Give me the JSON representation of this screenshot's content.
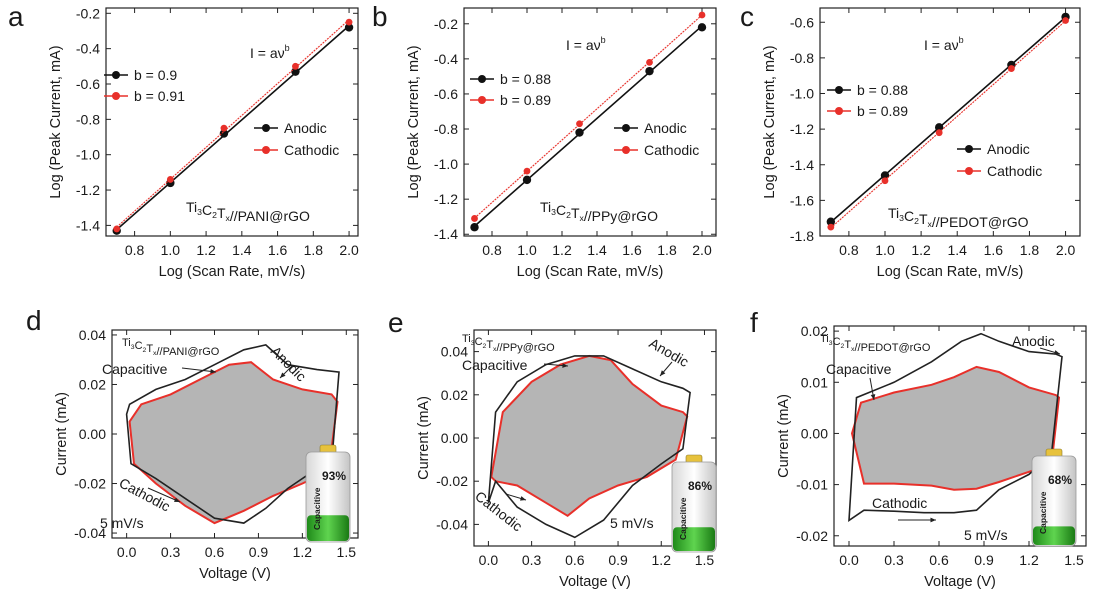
{
  "chart_data": [
    {
      "panel": "a",
      "type": "scatter",
      "equation": "I = aν",
      "equation_exp": "b",
      "label_main": "Ti",
      "label_sub": [
        "3",
        "2",
        "x"
      ],
      "label_parts": [
        "C",
        "T",
        "//PANI@rGO"
      ],
      "xlabel": "Log (Scan Rate, mV/s)",
      "ylabel": "Log (Peak Current, mA)",
      "xlim": [
        0.64,
        2.05
      ],
      "ylim": [
        -1.46,
        -0.17
      ],
      "xticks": [
        "0.8",
        "1.0",
        "1.2",
        "1.4",
        "1.6",
        "1.8",
        "2.0"
      ],
      "xtick_values": [
        0.8,
        1.0,
        1.2,
        1.4,
        1.6,
        1.8,
        2.0
      ],
      "yticks": [
        "-1.4",
        "-1.2",
        "-1.0",
        "-0.8",
        "-0.6",
        "-0.4",
        "-0.2"
      ],
      "ytick_values": [
        -1.4,
        -1.2,
        -1.0,
        -0.8,
        -0.6,
        -0.4,
        -0.2
      ],
      "fit_legend": [
        "b = 0.9",
        "b = 0.91"
      ],
      "series": [
        {
          "name": "Anodic",
          "color": "#111111",
          "x": [
            0.7,
            1.0,
            1.3,
            1.7,
            2.0
          ],
          "y": [
            -1.43,
            -1.16,
            -0.88,
            -0.53,
            -0.28
          ]
        },
        {
          "name": "Cathodic",
          "color": "#e8302a",
          "x": [
            0.7,
            1.0,
            1.3,
            1.7,
            2.0
          ],
          "y": [
            -1.42,
            -1.14,
            -0.85,
            -0.5,
            -0.25
          ]
        }
      ]
    },
    {
      "panel": "b",
      "type": "scatter",
      "equation": "I = aν",
      "equation_exp": "b",
      "label_main": "Ti",
      "label_sub": [
        "3",
        "2",
        "x"
      ],
      "label_parts": [
        "C",
        "T",
        "//PPy@rGO"
      ],
      "xlabel": "Log (Scan Rate, mV/s)",
      "ylabel": "Log (Peak Current, mA)",
      "xlim": [
        0.64,
        2.08
      ],
      "ylim": [
        -1.41,
        -0.11
      ],
      "xticks": [
        "0.8",
        "1.0",
        "1.2",
        "1.4",
        "1.6",
        "1.8",
        "2.0"
      ],
      "xtick_values": [
        0.8,
        1.0,
        1.2,
        1.4,
        1.6,
        1.8,
        2.0
      ],
      "yticks": [
        "-1.4",
        "-1.2",
        "-1.0",
        "-0.8",
        "-0.6",
        "-0.4",
        "-0.2"
      ],
      "ytick_values": [
        -1.4,
        -1.2,
        -1.0,
        -0.8,
        -0.6,
        -0.4,
        -0.2
      ],
      "fit_legend": [
        "b = 0.88",
        "b = 0.89"
      ],
      "series": [
        {
          "name": "Anodic",
          "color": "#111111",
          "x": [
            0.7,
            1.0,
            1.3,
            1.7,
            2.0
          ],
          "y": [
            -1.36,
            -1.09,
            -0.82,
            -0.47,
            -0.22
          ]
        },
        {
          "name": "Cathodic",
          "color": "#e8302a",
          "x": [
            0.7,
            1.0,
            1.3,
            1.7,
            2.0
          ],
          "y": [
            -1.31,
            -1.04,
            -0.77,
            -0.42,
            -0.15
          ]
        }
      ]
    },
    {
      "panel": "c",
      "type": "scatter",
      "equation": "I = aν",
      "equation_exp": "b",
      "label_main": "Ti",
      "label_sub": [
        "3",
        "2",
        "x"
      ],
      "label_parts": [
        "C",
        "T",
        "//PEDOT@rGO"
      ],
      "xlabel": "Log (Scan Rate, mV/s)",
      "ylabel": "Log (Peak Current, mA)",
      "xlim": [
        0.64,
        2.08
      ],
      "ylim": [
        -1.8,
        -0.52
      ],
      "xticks": [
        "0.8",
        "1.0",
        "1.2",
        "1.4",
        "1.6",
        "1.8",
        "2.0"
      ],
      "xtick_values": [
        0.8,
        1.0,
        1.2,
        1.4,
        1.6,
        1.8,
        2.0
      ],
      "yticks": [
        "-1.8",
        "-1.6",
        "-1.4",
        "-1.2",
        "-1.0",
        "-0.8",
        "-0.6"
      ],
      "ytick_values": [
        -1.8,
        -1.6,
        -1.4,
        -1.2,
        -1.0,
        -0.8,
        -0.6
      ],
      "fit_legend": [
        "b = 0.88",
        "b = 0.89"
      ],
      "series": [
        {
          "name": "Anodic",
          "color": "#111111",
          "x": [
            0.7,
            1.0,
            1.3,
            1.7,
            2.0
          ],
          "y": [
            -1.72,
            -1.46,
            -1.19,
            -0.84,
            -0.57
          ]
        },
        {
          "name": "Cathodic",
          "color": "#e8302a",
          "x": [
            0.7,
            1.0,
            1.3,
            1.7,
            2.0
          ],
          "y": [
            -1.75,
            -1.49,
            -1.22,
            -0.86,
            -0.59
          ]
        }
      ]
    },
    {
      "panel": "d",
      "type": "line",
      "label_main": "Ti",
      "label_sub": [
        "3",
        "2",
        "x"
      ],
      "label_parts": [
        "C",
        "T",
        "//PANI@rGO"
      ],
      "xlabel": "Voltage (V)",
      "ylabel": "Current (mA)",
      "xlim": [
        -0.1,
        1.58
      ],
      "ylim": [
        -0.042,
        0.042
      ],
      "xticks": [
        "0.0",
        "0.3",
        "0.6",
        "0.9",
        "1.2",
        "1.5"
      ],
      "xtick_values": [
        0.0,
        0.3,
        0.6,
        0.9,
        1.2,
        1.5
      ],
      "yticks": [
        "-0.04",
        "-0.02",
        "0.00",
        "0.02",
        "0.04"
      ],
      "ytick_values": [
        -0.04,
        -0.02,
        0.0,
        0.02,
        0.04
      ],
      "annotations": {
        "capacitive": "Capacitive",
        "anodic": "Anodic",
        "cathodic": "Cathodic",
        "rate": "5 mV/s"
      },
      "battery_percent": "93%",
      "battery_fraction": 0.93,
      "battery_label": "Capacitive",
      "total_curve": {
        "color": "#222222",
        "upper": {
          "x": [
            0.0,
            0.02,
            0.2,
            0.4,
            0.6,
            0.8,
            0.95,
            1.1,
            1.3,
            1.45
          ],
          "y": [
            0.008,
            0.012,
            0.018,
            0.022,
            0.028,
            0.034,
            0.036,
            0.028,
            0.026,
            0.025
          ]
        },
        "lower": {
          "x": [
            1.45,
            1.4,
            1.25,
            1.1,
            0.95,
            0.8,
            0.6,
            0.4,
            0.2,
            0.03,
            0.0
          ],
          "y": [
            0.025,
            -0.012,
            -0.016,
            -0.022,
            -0.03,
            -0.036,
            -0.034,
            -0.026,
            -0.018,
            -0.012,
            0.008
          ]
        }
      },
      "capacitive_curve": {
        "color": "#e8302a",
        "fill": "#b5b5b5",
        "upper": {
          "x": [
            0.02,
            0.1,
            0.3,
            0.5,
            0.7,
            0.85,
            1.0,
            1.2,
            1.4,
            1.44
          ],
          "y": [
            0.005,
            0.012,
            0.016,
            0.022,
            0.028,
            0.029,
            0.022,
            0.018,
            0.016,
            0.013
          ]
        },
        "lower": {
          "x": [
            1.44,
            1.38,
            1.2,
            1.0,
            0.8,
            0.6,
            0.4,
            0.2,
            0.05,
            0.02
          ],
          "y": [
            0.013,
            -0.015,
            -0.02,
            -0.025,
            -0.031,
            -0.036,
            -0.029,
            -0.02,
            -0.012,
            0.005
          ]
        }
      }
    },
    {
      "panel": "e",
      "type": "line",
      "label_main": "Ti",
      "label_sub": [
        "3",
        "2",
        "x"
      ],
      "label_parts": [
        "C",
        "T",
        "//PPy@rGO"
      ],
      "xlabel": "Voltage (V)",
      "ylabel": "Current (mA)",
      "xlim": [
        -0.1,
        1.58
      ],
      "ylim": [
        -0.05,
        0.05
      ],
      "xticks": [
        "0.0",
        "0.3",
        "0.6",
        "0.9",
        "1.2",
        "1.5"
      ],
      "xtick_values": [
        0.0,
        0.3,
        0.6,
        0.9,
        1.2,
        1.5
      ],
      "yticks": [
        "-0.04",
        "-0.02",
        "0.00",
        "0.02",
        "0.04"
      ],
      "ytick_values": [
        -0.04,
        -0.02,
        0.0,
        0.02,
        0.04
      ],
      "annotations": {
        "capacitive": "Capacitive",
        "anodic": "Anodic",
        "cathodic": "Cathodic",
        "rate": "5 mV/s"
      },
      "battery_percent": "86%",
      "battery_fraction": 0.86,
      "battery_label": "Capacitive",
      "total_curve": {
        "color": "#222222",
        "upper": {
          "x": [
            0.0,
            0.05,
            0.2,
            0.4,
            0.6,
            0.8,
            1.0,
            1.2,
            1.35,
            1.4
          ],
          "y": [
            -0.03,
            0.012,
            0.026,
            0.034,
            0.038,
            0.038,
            0.032,
            0.026,
            0.023,
            0.021
          ]
        },
        "lower": {
          "x": [
            1.4,
            1.35,
            1.2,
            1.0,
            0.8,
            0.6,
            0.4,
            0.2,
            0.05,
            0.0
          ],
          "y": [
            0.021,
            -0.005,
            -0.012,
            -0.022,
            -0.038,
            -0.046,
            -0.04,
            -0.032,
            -0.02,
            -0.03
          ]
        }
      },
      "capacitive_curve": {
        "color": "#e8302a",
        "fill": "#b5b5b5",
        "upper": {
          "x": [
            0.02,
            0.1,
            0.3,
            0.5,
            0.7,
            0.85,
            1.0,
            1.2,
            1.35,
            1.38
          ],
          "y": [
            -0.018,
            0.012,
            0.026,
            0.034,
            0.038,
            0.036,
            0.025,
            0.015,
            0.012,
            0.01
          ]
        },
        "lower": {
          "x": [
            1.38,
            1.3,
            1.1,
            0.9,
            0.7,
            0.55,
            0.4,
            0.2,
            0.05,
            0.02
          ],
          "y": [
            0.01,
            -0.01,
            -0.018,
            -0.022,
            -0.028,
            -0.036,
            -0.03,
            -0.022,
            -0.02,
            -0.018
          ]
        }
      }
    },
    {
      "panel": "f",
      "type": "line",
      "label_main": "Ti",
      "label_sub": [
        "3",
        "2",
        "x"
      ],
      "label_parts": [
        "C",
        "T",
        "//PEDOT@rGO"
      ],
      "xlabel": "Voltage (V)",
      "ylabel": "Current (mA)",
      "xlim": [
        -0.1,
        1.58
      ],
      "ylim": [
        -0.022,
        0.021
      ],
      "xticks": [
        "0.0",
        "0.3",
        "0.6",
        "0.9",
        "1.2",
        "1.5"
      ],
      "xtick_values": [
        0.0,
        0.3,
        0.6,
        0.9,
        1.2,
        1.5
      ],
      "yticks": [
        "-0.02",
        "-0.01",
        "0.00",
        "0.01",
        "0.02"
      ],
      "ytick_values": [
        -0.02,
        -0.01,
        0.0,
        0.01,
        0.02
      ],
      "annotations": {
        "capacitive": "Capacitive",
        "anodic": "Anodic",
        "cathodic": "Cathodic",
        "rate": "5 mV/s"
      },
      "battery_percent": "68%",
      "battery_fraction": 0.68,
      "battery_label": "Capacitive",
      "total_curve": {
        "color": "#222222",
        "upper": {
          "x": [
            0.0,
            0.05,
            0.3,
            0.55,
            0.75,
            0.88,
            1.0,
            1.2,
            1.38,
            1.42
          ],
          "y": [
            -0.017,
            0.007,
            0.01,
            0.014,
            0.018,
            0.0195,
            0.018,
            0.016,
            0.0155,
            0.015
          ]
        },
        "lower": {
          "x": [
            1.42,
            1.35,
            1.2,
            1.0,
            0.85,
            0.7,
            0.5,
            0.3,
            0.1,
            0.0
          ],
          "y": [
            0.015,
            -0.004,
            -0.008,
            -0.011,
            -0.015,
            -0.0155,
            -0.0155,
            -0.0152,
            -0.015,
            -0.017
          ]
        }
      },
      "capacitive_curve": {
        "color": "#e8302a",
        "fill": "#b5b5b5",
        "upper": {
          "x": [
            0.02,
            0.08,
            0.3,
            0.55,
            0.7,
            0.85,
            1.0,
            1.2,
            1.38,
            1.4
          ],
          "y": [
            0.0,
            0.006,
            0.008,
            0.0095,
            0.011,
            0.013,
            0.012,
            0.009,
            0.0075,
            0.007
          ]
        },
        "lower": {
          "x": [
            1.4,
            1.35,
            1.2,
            1.0,
            0.85,
            0.7,
            0.55,
            0.3,
            0.1,
            0.02
          ],
          "y": [
            0.007,
            -0.006,
            -0.0075,
            -0.0095,
            -0.0108,
            -0.011,
            -0.0102,
            -0.0098,
            -0.0098,
            0.0
          ]
        }
      }
    }
  ],
  "panel_letters": [
    "a",
    "b",
    "c",
    "d",
    "e",
    "f"
  ]
}
